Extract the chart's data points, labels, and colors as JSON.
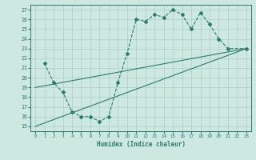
{
  "xlabel": "Humidex (Indice chaleur)",
  "bg_color": "#cce8e0",
  "line_color": "#2d7a6e",
  "grid_color": "#aacfc8",
  "xlim": [
    -0.5,
    23.5
  ],
  "ylim": [
    14.5,
    27.5
  ],
  "yticks": [
    15,
    16,
    17,
    18,
    19,
    20,
    21,
    22,
    23,
    24,
    25,
    26,
    27
  ],
  "xticks": [
    0,
    1,
    2,
    3,
    4,
    5,
    6,
    7,
    8,
    9,
    10,
    11,
    12,
    13,
    14,
    15,
    16,
    17,
    18,
    19,
    20,
    21,
    22,
    23
  ],
  "line1_x": [
    1,
    2,
    3,
    4,
    5,
    6,
    7,
    8,
    9,
    10,
    11,
    12,
    13,
    14,
    15,
    16,
    17,
    18,
    19,
    20,
    21,
    23
  ],
  "line1_y": [
    21.5,
    19.5,
    18.5,
    16.5,
    16.0,
    16.0,
    15.5,
    16.0,
    19.5,
    22.5,
    26.0,
    25.8,
    26.5,
    26.2,
    27.0,
    26.5,
    25.0,
    26.7,
    25.5,
    24.0,
    23.0,
    23.0
  ],
  "line2_x": [
    0,
    23
  ],
  "line2_y": [
    19.0,
    23.0
  ],
  "line3_x": [
    0,
    23
  ],
  "line3_y": [
    15.0,
    23.0
  ]
}
